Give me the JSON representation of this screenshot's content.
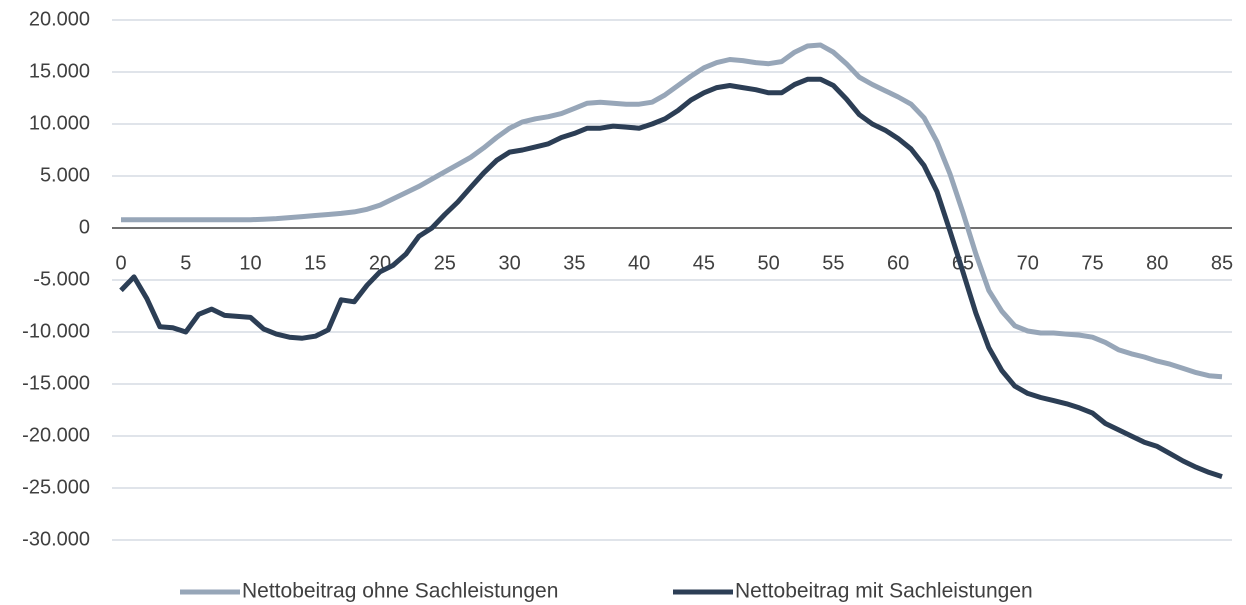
{
  "chart_data": {
    "type": "line",
    "x": [
      0,
      1,
      2,
      3,
      4,
      5,
      6,
      7,
      8,
      9,
      10,
      11,
      12,
      13,
      14,
      15,
      16,
      17,
      18,
      19,
      20,
      21,
      22,
      23,
      24,
      25,
      26,
      27,
      28,
      29,
      30,
      31,
      32,
      33,
      34,
      35,
      36,
      37,
      38,
      39,
      40,
      41,
      42,
      43,
      44,
      45,
      46,
      47,
      48,
      49,
      50,
      51,
      52,
      53,
      54,
      55,
      56,
      57,
      58,
      59,
      60,
      61,
      62,
      63,
      64,
      65,
      66,
      67,
      68,
      69,
      70,
      71,
      72,
      73,
      74,
      75,
      76,
      77,
      78,
      79,
      80,
      81,
      82,
      83,
      84,
      85
    ],
    "series": [
      {
        "name": "Nettobeitrag ohne Sachleistungen",
        "color": "#97a6b8",
        "values": [
          800,
          800,
          800,
          800,
          800,
          800,
          800,
          800,
          800,
          800,
          800,
          850,
          900,
          1000,
          1100,
          1200,
          1300,
          1400,
          1550,
          1800,
          2200,
          2800,
          3400,
          4000,
          4700,
          5400,
          6100,
          6800,
          7700,
          8700,
          9600,
          10200,
          10500,
          10700,
          11000,
          11500,
          12000,
          12100,
          12000,
          11900,
          11900,
          12100,
          12800,
          13700,
          14600,
          15400,
          15900,
          16200,
          16100,
          15900,
          15800,
          16000,
          16900,
          17500,
          17600,
          16900,
          15800,
          14500,
          13800,
          13200,
          12600,
          11900,
          10600,
          8300,
          5200,
          1500,
          -2500,
          -6000,
          -8000,
          -9400,
          -9900,
          -10100,
          -10100,
          -10200,
          -10300,
          -10500,
          -11000,
          -11700,
          -12100,
          -12400,
          -12800,
          -13100,
          -13500,
          -13900,
          -14200,
          -14300
        ]
      },
      {
        "name": "Nettobeitrag mit Sachleistungen",
        "color": "#2c3e55",
        "values": [
          -6000,
          -4700,
          -6800,
          -9500,
          -9600,
          -10000,
          -8300,
          -7800,
          -8400,
          -8500,
          -8600,
          -9700,
          -10200,
          -10500,
          -10600,
          -10400,
          -9800,
          -6900,
          -7100,
          -5500,
          -4200,
          -3600,
          -2500,
          -800,
          0,
          1300,
          2500,
          3900,
          5300,
          6500,
          7300,
          7500,
          7800,
          8100,
          8700,
          9100,
          9600,
          9600,
          9800,
          9700,
          9600,
          10000,
          10500,
          11300,
          12300,
          13000,
          13500,
          13700,
          13500,
          13300,
          13000,
          13000,
          13800,
          14300,
          14300,
          13700,
          12400,
          10900,
          10000,
          9400,
          8600,
          7600,
          6000,
          3500,
          -300,
          -4200,
          -8200,
          -11500,
          -13700,
          -15200,
          -15900,
          -16300,
          -16600,
          -16900,
          -17300,
          -17800,
          -18800,
          -19400,
          -20000,
          -20600,
          -21000,
          -21700,
          -22400,
          -23000,
          -23500,
          -23900
        ]
      }
    ],
    "xlim": [
      0,
      85
    ],
    "xticks": [
      0,
      5,
      10,
      15,
      20,
      25,
      30,
      35,
      40,
      45,
      50,
      55,
      60,
      65,
      70,
      75,
      80,
      85
    ],
    "ylim": [
      -30000,
      20000
    ],
    "yticks": [
      {
        "value": 20000,
        "label": "20.000"
      },
      {
        "value": 15000,
        "label": "15.000"
      },
      {
        "value": 10000,
        "label": "10.000"
      },
      {
        "value": 5000,
        "label": "5.000"
      },
      0,
      {
        "value": -5000,
        "label": "-5.000"
      },
      {
        "value": -10000,
        "label": "-10.000"
      },
      {
        "value": -15000,
        "label": "-15.000"
      },
      {
        "value": -20000,
        "label": "-20.000"
      },
      {
        "value": -25000,
        "label": "-25.000"
      },
      {
        "value": -30000,
        "label": "-30.000"
      }
    ],
    "grid": true,
    "legend": "bottom"
  }
}
